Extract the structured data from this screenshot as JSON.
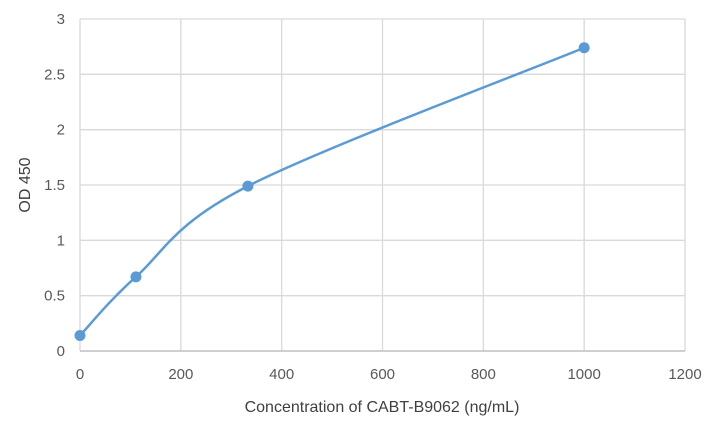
{
  "chart_data": {
    "type": "scatter",
    "title": "",
    "xlabel": "Concentration of CABT-B9062 (ng/mL)",
    "ylabel": "OD 450",
    "xlim": [
      0,
      1200
    ],
    "ylim": [
      0,
      3
    ],
    "x_ticks": [
      0,
      200,
      400,
      600,
      800,
      1000,
      1200
    ],
    "y_ticks": [
      0,
      0.5,
      1,
      1.5,
      2,
      2.5,
      3
    ],
    "x_tick_labels": [
      "0",
      "200",
      "400",
      "600",
      "800",
      "1000",
      "1200"
    ],
    "y_tick_labels": [
      "0",
      "0.5",
      "1",
      "1.5",
      "2",
      "2.5",
      "3"
    ],
    "grid": true,
    "smooth_line": true,
    "legend": "none",
    "series": [
      {
        "x": [
          0,
          111,
          333,
          1000
        ],
        "y": [
          0.14,
          0.67,
          1.49,
          2.74
        ],
        "color": "#5b9bd5"
      }
    ]
  }
}
